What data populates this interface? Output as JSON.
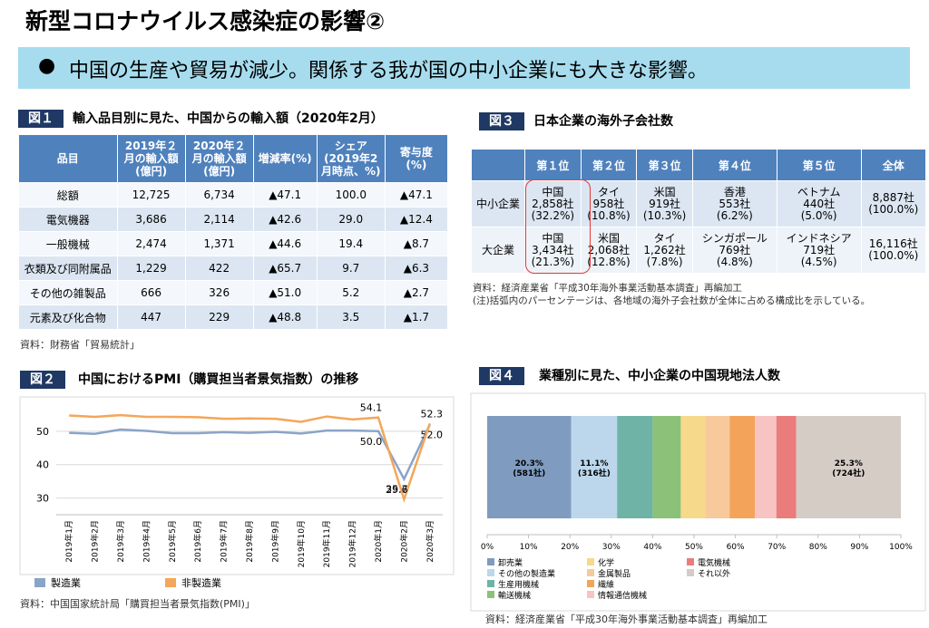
{
  "header": {
    "title": "新型コロナウイルス感染症の影響②",
    "banner": "中国の生産や貿易が減少。関係する我が国の中小企業にも大きな影響。"
  },
  "fig1": {
    "label": "図１",
    "title": "輸入品目別に見た、中国からの輸入額（2020年2月）",
    "table": {
      "headers": [
        [
          "品目"
        ],
        [
          "2019年２",
          "月の輸入額",
          "(億円)"
        ],
        [
          "2020年２",
          "月の輸入額",
          "(億円)"
        ],
        [
          "増減率(%)"
        ],
        [
          "シェア",
          "(2019年2",
          "月時点、%)"
        ],
        [
          "寄与度",
          "(%)"
        ]
      ],
      "rows": [
        [
          "総額",
          "12,725",
          "6,734",
          "▲47.1",
          "100.0",
          "▲47.1"
        ],
        [
          "電気機器",
          "3,686",
          "2,114",
          "▲42.6",
          "29.0",
          "▲12.4"
        ],
        [
          "一般機械",
          "2,474",
          "1,371",
          "▲44.6",
          "19.4",
          "▲8.7"
        ],
        [
          "衣類及び同附属品",
          "1,229",
          "422",
          "▲65.7",
          "9.7",
          "▲6.3"
        ],
        [
          "その他の雑製品",
          "666",
          "326",
          "▲51.0",
          "5.2",
          "▲2.7"
        ],
        [
          "元素及び化合物",
          "447",
          "229",
          "▲48.8",
          "3.5",
          "▲1.7"
        ]
      ]
    },
    "source": "資料：財務省「貿易統計」"
  },
  "fig3": {
    "label": "図３",
    "title": "日本企業の海外子会社数",
    "table": {
      "headers": [
        "第１位",
        "第２位",
        "第３位",
        "第４位",
        "第５位",
        "全体"
      ],
      "rows": [
        {
          "label": "中小企業",
          "cells": [
            [
              "中国",
              "2,858社",
              "(32.2%)"
            ],
            [
              "タイ",
              "958社",
              "(10.8%)"
            ],
            [
              "米国",
              "919社",
              "(10.3%)"
            ],
            [
              "香港",
              "553社",
              "(6.2%)"
            ],
            [
              "ベトナム",
              "440社",
              "(5.0%)"
            ],
            [
              "8,887社",
              "(100.0%)"
            ]
          ]
        },
        {
          "label": "大企業",
          "cells": [
            [
              "中国",
              "3,434社",
              "(21.3%)"
            ],
            [
              "米国",
              "2,068社",
              "(12.8%)"
            ],
            [
              "タイ",
              "1,262社",
              "(7.8%)"
            ],
            [
              "シンガポール",
              "769社",
              "(4.8%)"
            ],
            [
              "インドネシア",
              "719社",
              "(4.5%)"
            ],
            [
              "16,116社",
              "(100.0%)"
            ]
          ]
        }
      ]
    },
    "source": "資料：経済産業省「平成30年海外事業活動基本調査」再編加工",
    "note": "(注)括弧内のパーセンテージは、各地域の海外子会社数が全体に占める構成比を示している。"
  },
  "fig2": {
    "label": "図２",
    "title": "中国におけるPMI（購買担当者景気指数）の推移",
    "source": "資料：中国国家統計局「購買担当者景気指数(PMI)」"
  },
  "fig4": {
    "label": "図４",
    "title": "業種別に見た、中小企業の中国現地法人数",
    "source": "資料：経済産業省「平成30年海外事業活動基本調査」再編加工"
  },
  "chart_data": [
    {
      "type": "line",
      "categories": [
        "2019年1月",
        "2019年2月",
        "2019年3月",
        "2019年4月",
        "2019年5月",
        "2019年6月",
        "2019年7月",
        "2019年8月",
        "2019年9月",
        "2019年10月",
        "2019年11月",
        "2019年12月",
        "2020年1月",
        "2020年2月",
        "2020年3月"
      ],
      "series": [
        {
          "name": "製造業",
          "color": "#8aa4c8",
          "values": [
            49.5,
            49.2,
            50.5,
            50.1,
            49.4,
            49.4,
            49.7,
            49.5,
            49.8,
            49.3,
            50.2,
            50.2,
            50.0,
            35.7,
            52.0
          ],
          "value_labels": [
            null,
            null,
            null,
            null,
            null,
            null,
            null,
            null,
            null,
            null,
            null,
            null,
            "50.0",
            "35.7",
            "52.0"
          ]
        },
        {
          "name": "非製造業",
          "color": "#f4a65a",
          "values": [
            54.7,
            54.3,
            54.8,
            54.3,
            54.3,
            54.2,
            53.7,
            53.8,
            53.7,
            52.8,
            54.4,
            53.5,
            54.1,
            29.6,
            52.3
          ],
          "value_labels": [
            null,
            null,
            null,
            null,
            null,
            null,
            null,
            null,
            null,
            null,
            null,
            null,
            "54.1",
            "29.6",
            "52.3"
          ]
        }
      ],
      "ylim": [
        25,
        57
      ],
      "yticks": [
        30,
        40,
        50
      ],
      "grid": true
    },
    {
      "type": "stacked_hbar",
      "xlim": [
        0,
        100
      ],
      "xticks": [
        {
          "value": 0,
          "label": "0%"
        },
        {
          "value": 10,
          "label": "10%"
        },
        {
          "value": 20,
          "label": "20%"
        },
        {
          "value": 30,
          "label": "30%"
        },
        {
          "value": 40,
          "label": "40%"
        },
        {
          "value": 50,
          "label": "50%"
        },
        {
          "value": 60,
          "label": "60%"
        },
        {
          "value": 70,
          "label": "70%"
        },
        {
          "value": 80,
          "label": "80%"
        },
        {
          "value": 90,
          "label": "90%"
        },
        {
          "value": 100,
          "label": "100%"
        }
      ],
      "series": [
        {
          "name": "卸売業",
          "color": "#7f9bbf",
          "values": [
            20.3
          ],
          "value_labels": [
            "20.3%"
          ],
          "count_labels": [
            "(581社)"
          ]
        },
        {
          "name": "その他の製造業",
          "color": "#bcd7ec",
          "values": [
            11.1
          ],
          "value_labels": [
            "11.1%"
          ],
          "count_labels": [
            "(316社)"
          ]
        },
        {
          "name": "生産用機械",
          "color": "#6fb3a7",
          "values": [
            8.6
          ]
        },
        {
          "name": "輸送機械",
          "color": "#8cc17a",
          "values": [
            6.8
          ]
        },
        {
          "name": "化学",
          "color": "#f6d98a",
          "values": [
            5.9
          ]
        },
        {
          "name": "金属製品",
          "color": "#f7c99b",
          "values": [
            5.9
          ]
        },
        {
          "name": "繊維",
          "color": "#f3a45a",
          "values": [
            6.1
          ]
        },
        {
          "name": "情報通信機械",
          "color": "#f8c3c3",
          "values": [
            5.2
          ]
        },
        {
          "name": "電気機械",
          "color": "#ea7c7c",
          "values": [
            4.8
          ]
        },
        {
          "name": "それ以外",
          "color": "#d6ccc6",
          "values": [
            25.3
          ],
          "value_labels": [
            "25.3%"
          ],
          "count_labels": [
            "(724社)"
          ]
        }
      ]
    }
  ]
}
